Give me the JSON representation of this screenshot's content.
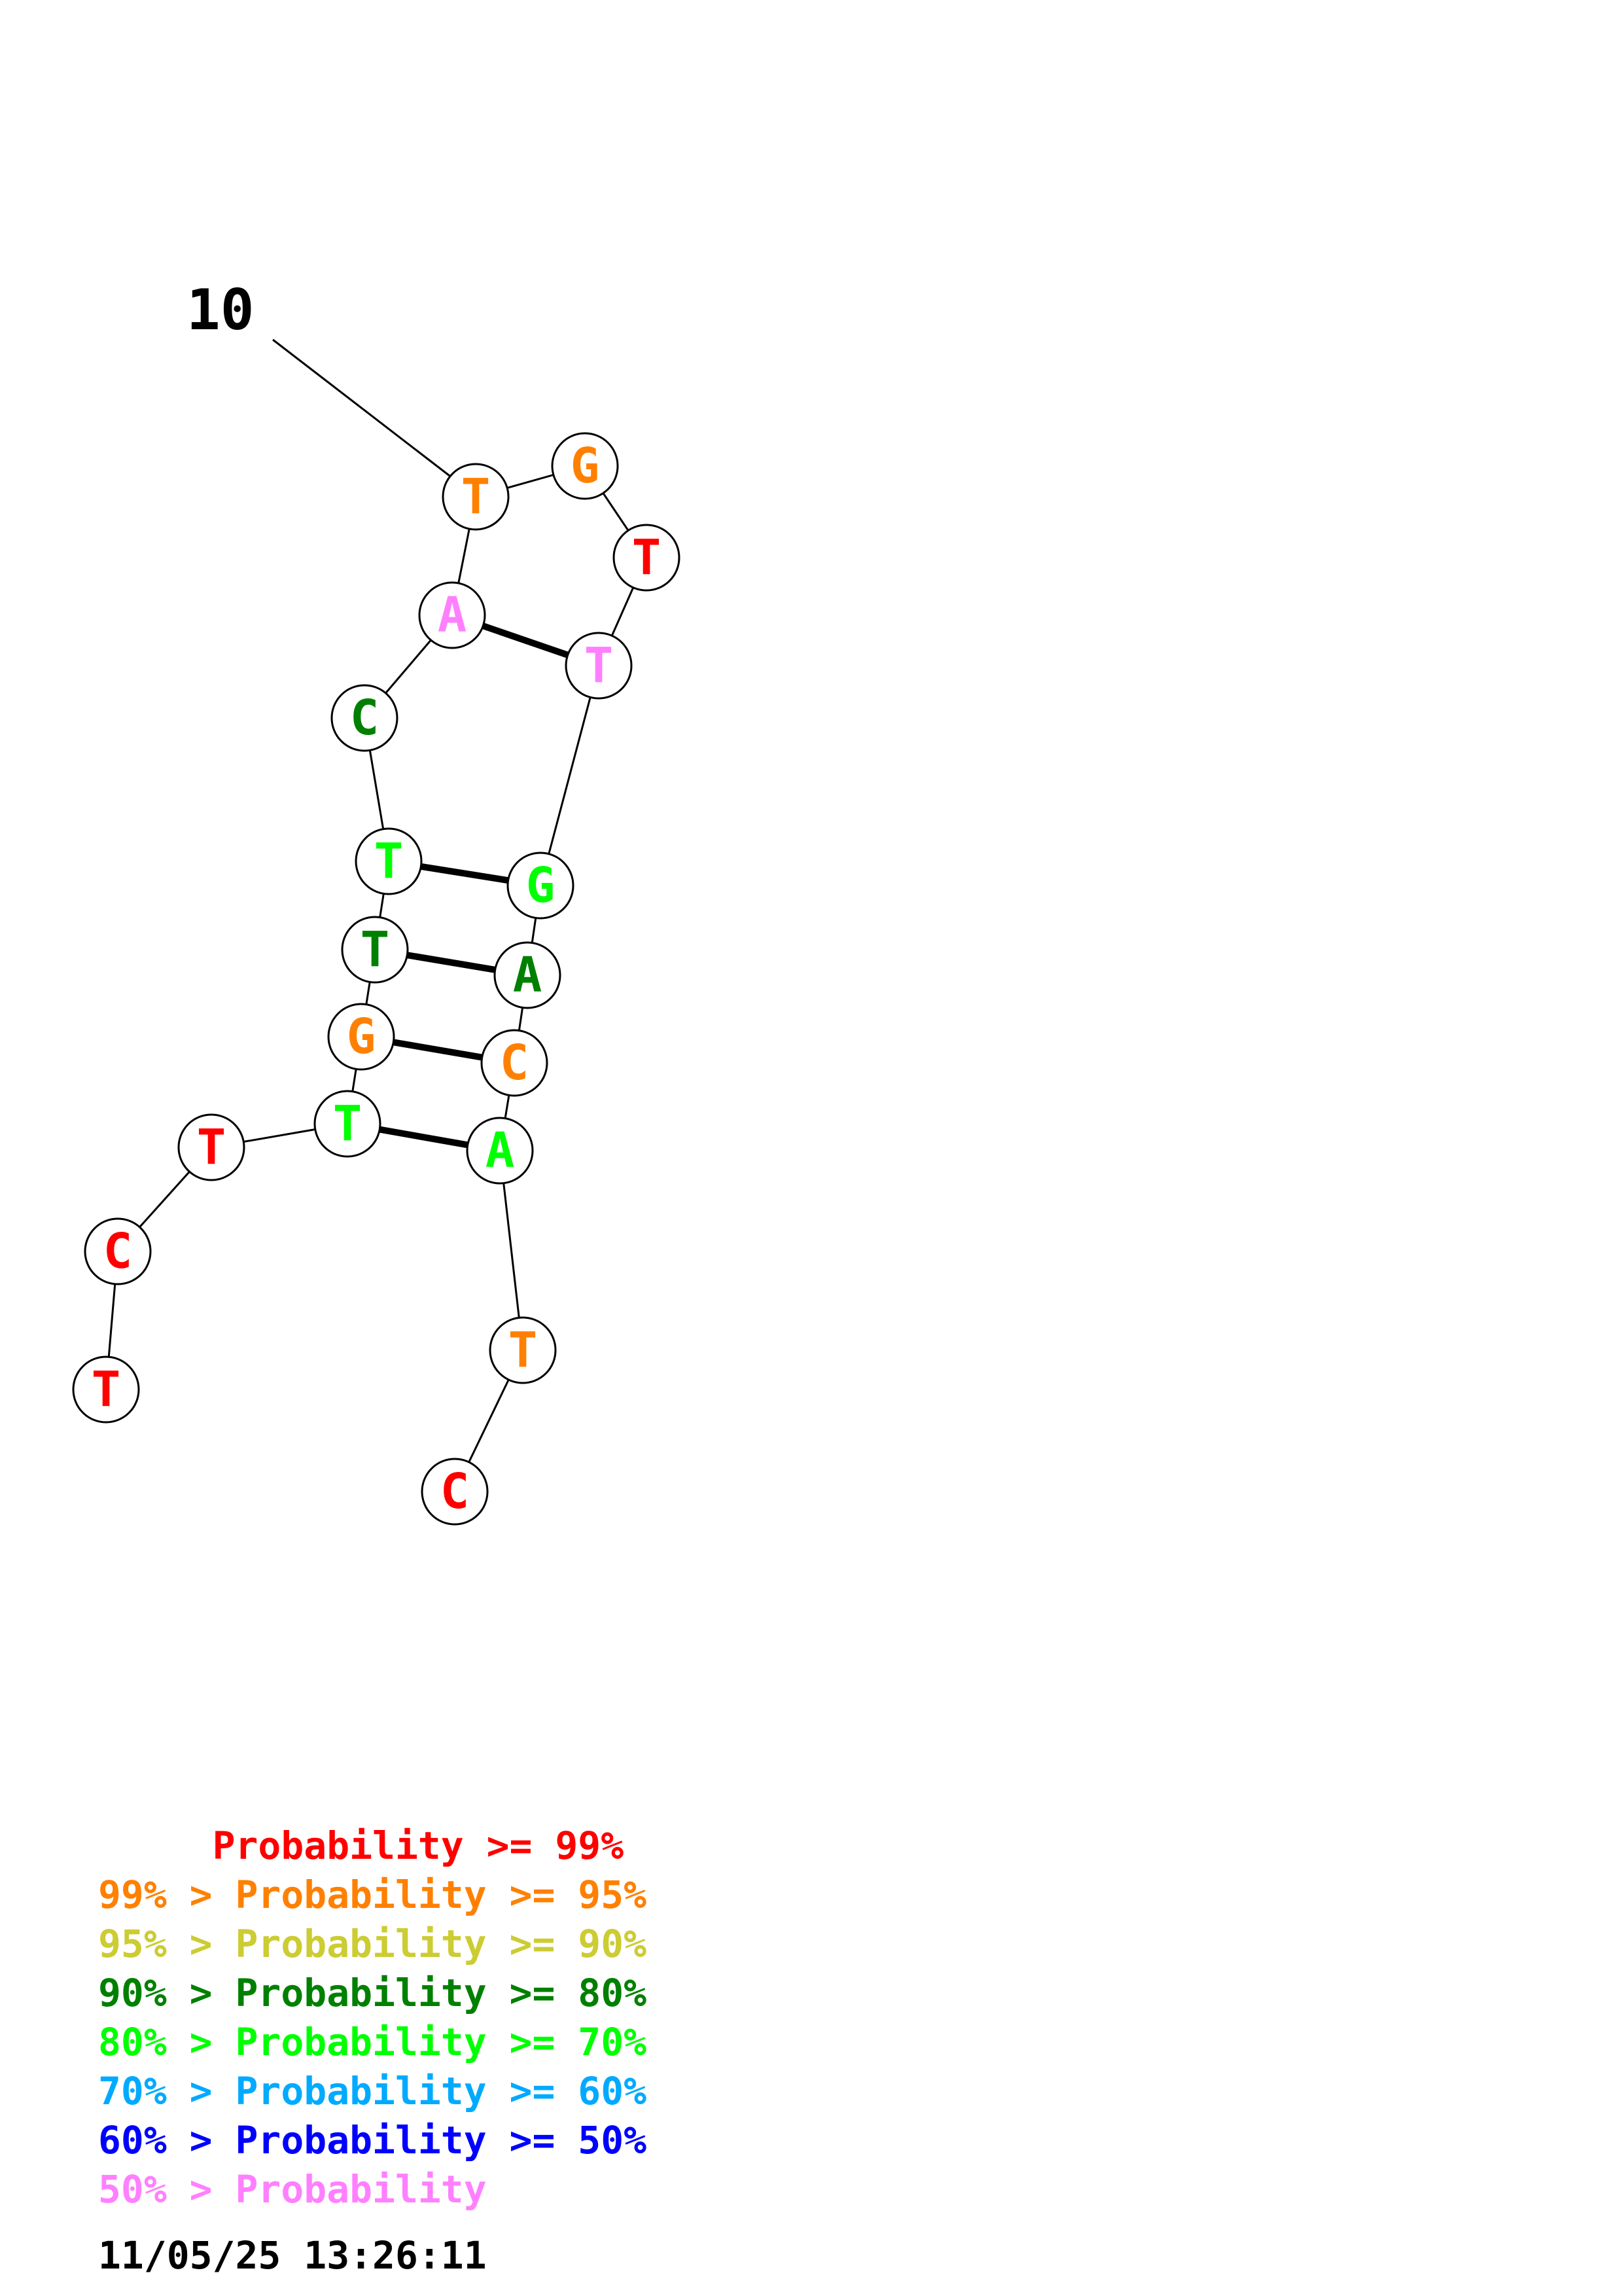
{
  "structure": {
    "position_label": "10",
    "nucleotides": [
      {
        "id": 1,
        "base": "T",
        "color": "#ff0000"
      },
      {
        "id": 2,
        "base": "C",
        "color": "#ff0000"
      },
      {
        "id": 3,
        "base": "T",
        "color": "#ff0000"
      },
      {
        "id": 4,
        "base": "T",
        "color": "#00ff00"
      },
      {
        "id": 5,
        "base": "G",
        "color": "#ff8000"
      },
      {
        "id": 6,
        "base": "T",
        "color": "#008000"
      },
      {
        "id": 7,
        "base": "T",
        "color": "#00ff00"
      },
      {
        "id": 8,
        "base": "C",
        "color": "#008000"
      },
      {
        "id": 9,
        "base": "A",
        "color": "#ff80ff"
      },
      {
        "id": 10,
        "base": "T",
        "color": "#ff8000"
      },
      {
        "id": 11,
        "base": "G",
        "color": "#ff8000"
      },
      {
        "id": 12,
        "base": "T",
        "color": "#ff0000"
      },
      {
        "id": 13,
        "base": "T",
        "color": "#ff80ff"
      },
      {
        "id": 14,
        "base": "G",
        "color": "#00ff00"
      },
      {
        "id": 15,
        "base": "A",
        "color": "#008000"
      },
      {
        "id": 16,
        "base": "C",
        "color": "#ff8000"
      },
      {
        "id": 17,
        "base": "A",
        "color": "#00ff00"
      },
      {
        "id": 18,
        "base": "T",
        "color": "#ff8000"
      },
      {
        "id": 19,
        "base": "C",
        "color": "#ff0000"
      }
    ],
    "base_pairs": [
      [
        4,
        17
      ],
      [
        5,
        16
      ],
      [
        6,
        15
      ],
      [
        7,
        14
      ],
      [
        9,
        13
      ]
    ]
  },
  "legend": [
    {
      "text": "     Probability >= 99%",
      "color": "#ff0000"
    },
    {
      "text": "99% > Probability >= 95%",
      "color": "#ff8000"
    },
    {
      "text": "95% > Probability >= 90%",
      "color": "#cccc33"
    },
    {
      "text": "90% > Probability >= 80%",
      "color": "#008000"
    },
    {
      "text": "80% > Probability >= 70%",
      "color": "#00ff00"
    },
    {
      "text": "70% > Probability >= 60%",
      "color": "#00aaff"
    },
    {
      "text": "60% > Probability >= 50%",
      "color": "#0000ff"
    },
    {
      "text": "50% > Probability",
      "color": "#ff80ff"
    }
  ],
  "timestamp": "11/05/25 13:26:11"
}
